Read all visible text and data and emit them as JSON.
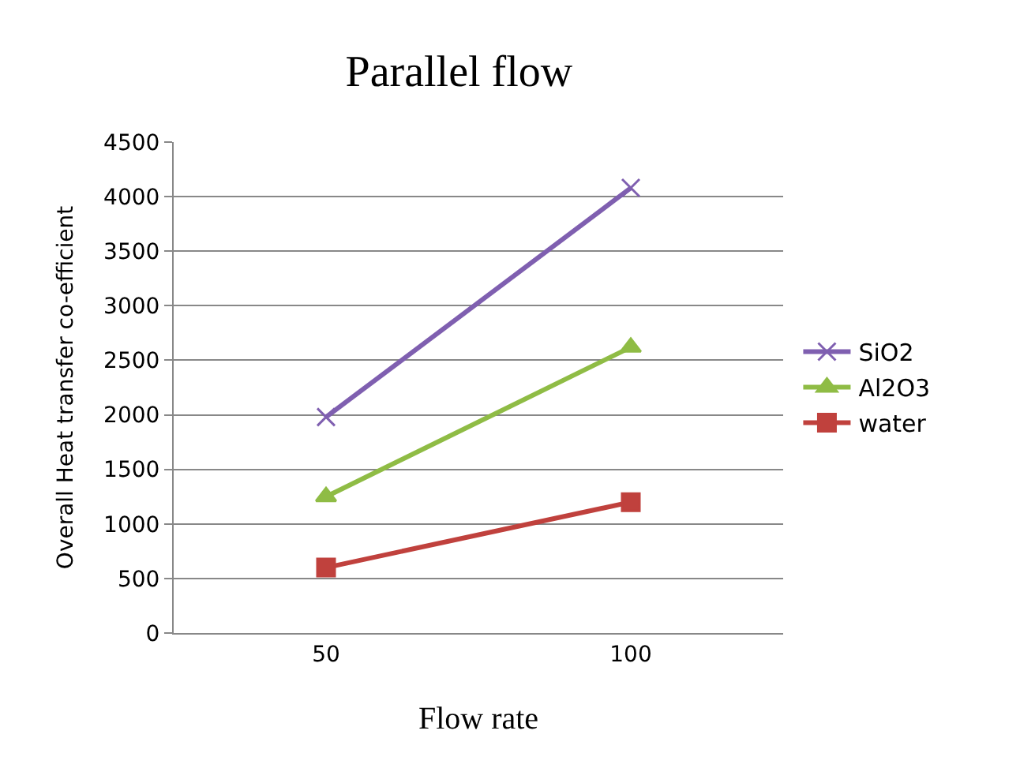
{
  "chart_data": {
    "type": "line",
    "title": "Parallel flow",
    "xlabel": "Flow rate",
    "ylabel": "Overall Heat transfer co-efficient",
    "categories": [
      "50",
      "100"
    ],
    "series": [
      {
        "name": "SiO2",
        "color": "#7f5fb0",
        "marker": "cross",
        "values": [
          1980,
          4080
        ]
      },
      {
        "name": "Al2O3",
        "color": "#8fbc45",
        "marker": "triangle",
        "values": [
          1250,
          2620
        ]
      },
      {
        "name": "water",
        "color": "#c0413d",
        "marker": "square",
        "values": [
          600,
          1200
        ]
      }
    ],
    "ylim": [
      0,
      4500
    ],
    "yticks": [
      0,
      500,
      1000,
      1500,
      2000,
      2500,
      3000,
      3500,
      4000,
      4500
    ],
    "grid": "y",
    "legend": "right",
    "line_style": "solid"
  }
}
